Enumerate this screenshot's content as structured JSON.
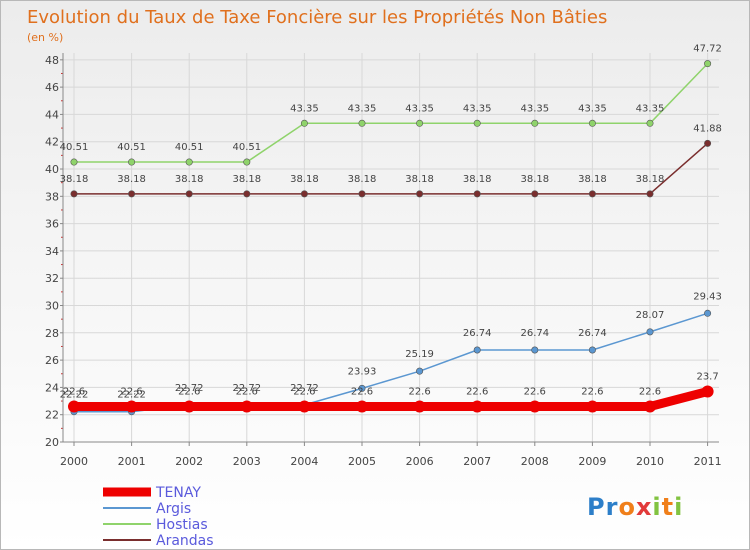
{
  "chart_data": {
    "type": "line",
    "title": "Evolution du Taux de Taxe Foncière sur les Propriétés Non Bâties",
    "ylabel": "(en %)",
    "xlabel": "",
    "ylim": [
      20,
      48.5
    ],
    "yticks": [
      20,
      22,
      24,
      26,
      28,
      30,
      32,
      34,
      36,
      38,
      40,
      42,
      44,
      46,
      48
    ],
    "x": [
      "2000",
      "2001",
      "2002",
      "2003",
      "2004",
      "2005",
      "2006",
      "2007",
      "2008",
      "2009",
      "2010",
      "2011"
    ],
    "series": [
      {
        "name": "TENAY",
        "color": "#ee0000",
        "values": [
          22.6,
          22.6,
          22.6,
          22.6,
          22.6,
          22.6,
          22.6,
          22.6,
          22.6,
          22.6,
          22.6,
          23.7
        ],
        "labels": [
          "22.6",
          "22.6",
          "22.6",
          "22.6",
          "22.6",
          "22.6",
          "22.6",
          "22.6",
          "22.6",
          "22.6",
          "22.6",
          "23.7"
        ]
      },
      {
        "name": "Argis",
        "color": "#5b97d1",
        "values": [
          22.22,
          22.22,
          22.72,
          22.72,
          22.72,
          23.93,
          25.19,
          26.74,
          26.74,
          26.74,
          28.07,
          29.43
        ],
        "labels": [
          "22.22",
          "22.22",
          "22.72",
          "22.72",
          "22.72",
          "23.93",
          "25.19",
          "26.74",
          "26.74",
          "26.74",
          "28.07",
          "29.43"
        ]
      },
      {
        "name": "Hostias",
        "color": "#8fd36b",
        "values": [
          40.51,
          40.51,
          40.51,
          40.51,
          43.35,
          43.35,
          43.35,
          43.35,
          43.35,
          43.35,
          43.35,
          47.72
        ],
        "labels": [
          "40.51",
          "40.51",
          "40.51",
          "40.51",
          "43.35",
          "43.35",
          "43.35",
          "43.35",
          "43.35",
          "43.35",
          "43.35",
          "47.72"
        ]
      },
      {
        "name": "Arandas",
        "color": "#7a2e2e",
        "values": [
          38.18,
          38.18,
          38.18,
          38.18,
          38.18,
          38.18,
          38.18,
          38.18,
          38.18,
          38.18,
          38.18,
          41.88
        ],
        "labels": [
          "38.18",
          "38.18",
          "38.18",
          "38.18",
          "38.18",
          "38.18",
          "38.18",
          "38.18",
          "38.18",
          "38.18",
          "38.18",
          "41.88"
        ]
      }
    ],
    "legend_position": "bottom-left"
  },
  "logo": {
    "p1": "Pr",
    "p2": "o",
    "p3": "x",
    "p4": "i",
    "p5": "t",
    "p6": "i"
  }
}
